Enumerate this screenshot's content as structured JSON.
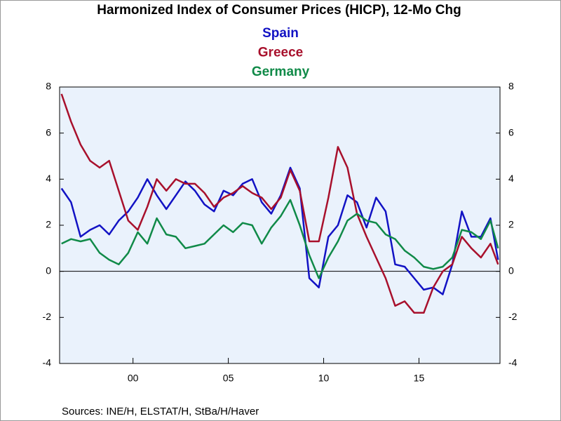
{
  "chart_data": {
    "type": "line",
    "title": "Harmonized Index of Consumer Prices (HICP), 12-Mo Chg",
    "source": "Sources:  INE/H, ELSTAT/H, StBa/H/Haver",
    "x": [
      1996.25,
      1996.75,
      1997.25,
      1997.75,
      1998.25,
      1998.75,
      1999.25,
      1999.75,
      2000.25,
      2000.75,
      2001.25,
      2001.75,
      2002.25,
      2002.75,
      2003.25,
      2003.75,
      2004.25,
      2004.75,
      2005.25,
      2005.75,
      2006.25,
      2006.75,
      2007.25,
      2007.75,
      2008.25,
      2008.75,
      2009.25,
      2009.75,
      2010.25,
      2010.75,
      2011.25,
      2011.75,
      2012.25,
      2012.75,
      2013.25,
      2013.75,
      2014.25,
      2014.75,
      2015.25,
      2015.75,
      2016.25,
      2016.75,
      2017.25,
      2017.75,
      2018.25,
      2018.75,
      2019.15
    ],
    "series": [
      {
        "name": "Spain",
        "color": "#1212c4",
        "values": [
          3.6,
          3.0,
          1.5,
          1.8,
          2.0,
          1.6,
          2.2,
          2.6,
          3.2,
          4.0,
          3.3,
          2.7,
          3.3,
          3.9,
          3.5,
          2.9,
          2.6,
          3.5,
          3.3,
          3.8,
          4.0,
          3.0,
          2.5,
          3.3,
          4.5,
          3.6,
          -0.3,
          -0.7,
          1.5,
          2.0,
          3.3,
          3.0,
          1.9,
          3.2,
          2.6,
          0.3,
          0.2,
          -0.3,
          -0.8,
          -0.7,
          -1.0,
          0.3,
          2.6,
          1.5,
          1.5,
          2.3,
          0.5
        ]
      },
      {
        "name": "Greece",
        "color": "#a8102c",
        "values": [
          7.7,
          6.5,
          5.5,
          4.8,
          4.5,
          4.8,
          3.5,
          2.2,
          1.8,
          2.8,
          4.0,
          3.5,
          4.0,
          3.8,
          3.8,
          3.4,
          2.8,
          3.2,
          3.4,
          3.7,
          3.4,
          3.2,
          2.7,
          3.2,
          4.4,
          3.5,
          1.3,
          1.3,
          3.2,
          5.4,
          4.5,
          2.5,
          1.5,
          0.6,
          -0.3,
          -1.5,
          -1.3,
          -1.8,
          -1.8,
          -0.7,
          0.0,
          0.3,
          1.5,
          1.0,
          0.6,
          1.2,
          0.3
        ]
      },
      {
        "name": "Germany",
        "color": "#108a48",
        "values": [
          1.2,
          1.4,
          1.3,
          1.4,
          0.8,
          0.5,
          0.3,
          0.8,
          1.7,
          1.2,
          2.3,
          1.6,
          1.5,
          1.0,
          1.1,
          1.2,
          1.6,
          2.0,
          1.7,
          2.1,
          2.0,
          1.2,
          1.9,
          2.4,
          3.1,
          2.0,
          0.7,
          -0.3,
          0.6,
          1.3,
          2.2,
          2.5,
          2.2,
          2.1,
          1.6,
          1.4,
          0.9,
          0.6,
          0.2,
          0.1,
          0.2,
          0.6,
          1.8,
          1.7,
          1.4,
          2.2,
          1.0
        ]
      }
    ],
    "xlim": [
      1996.15,
      2019.25
    ],
    "xticks": [
      {
        "value": 2000,
        "label": "00"
      },
      {
        "value": 2005,
        "label": "05"
      },
      {
        "value": 2010,
        "label": "10"
      },
      {
        "value": 2015,
        "label": "15"
      }
    ],
    "ylim": [
      -4,
      8
    ],
    "yticks": [
      -4,
      -2,
      0,
      2,
      4,
      6,
      8
    ],
    "y2lim": [
      -4,
      8
    ],
    "y2ticks": [
      -4,
      -2,
      0,
      2,
      4,
      6,
      8
    ]
  }
}
